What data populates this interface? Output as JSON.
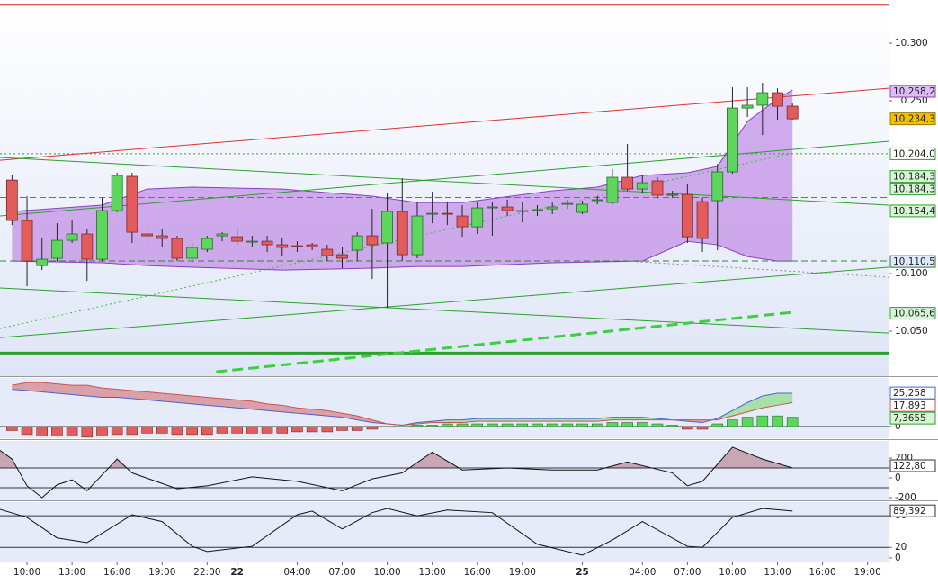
{
  "chart_data": {
    "type": "candlestick",
    "xlim": [
      -0.8,
      58.4
    ],
    "xticks": [
      {
        "value": 1,
        "label": "10:00"
      },
      {
        "value": 4,
        "label": "13:00"
      },
      {
        "value": 7,
        "label": "16:00"
      },
      {
        "value": 10,
        "label": "19:00"
      },
      {
        "value": 13,
        "label": "22:00"
      },
      {
        "value": 15,
        "label": "22"
      },
      {
        "value": 19,
        "label": "04:00"
      },
      {
        "value": 22,
        "label": "07:00"
      },
      {
        "value": 25,
        "label": "10:00"
      },
      {
        "value": 28,
        "label": "13:00"
      },
      {
        "value": 31,
        "label": "16:00"
      },
      {
        "value": 34,
        "label": "19:00"
      },
      {
        "value": 38,
        "label": "25"
      },
      {
        "value": 42,
        "label": "04:00"
      },
      {
        "value": 45,
        "label": "07:00"
      },
      {
        "value": 48,
        "label": "10:00"
      },
      {
        "value": 51,
        "label": "13:00"
      },
      {
        "value": 54,
        "label": "16:00"
      },
      {
        "value": 57,
        "label": "19:00"
      }
    ],
    "open": [
      10.1812,
      10.1461,
      10.107,
      10.1133,
      10.1289,
      10.1344,
      10.1125,
      10.1547,
      10.1844,
      10.1344,
      10.1328,
      10.1305,
      10.1133,
      10.1211,
      10.1328,
      10.132,
      10.1281,
      10.1281,
      10.125,
      10.1242,
      10.125,
      10.1211,
      10.1164,
      10.1203,
      10.1328,
      10.1266,
      10.1539,
      10.1164,
      10.1516,
      10.1523,
      10.15,
      10.1406,
      10.1578,
      10.1578,
      10.1547,
      10.1555,
      10.1562,
      10.1602,
      10.1531,
      10.1633,
      10.1617,
      10.1836,
      10.1734,
      10.1805,
      10.1687,
      10.1687,
      10.1625,
      10.1633,
      10.1883,
      10.2437,
      10.2461,
      10.257,
      10.2453
    ],
    "high": [
      10.1852,
      10.1672,
      10.1305,
      10.1437,
      10.1461,
      10.1383,
      10.1656,
      10.1875,
      10.1875,
      10.1422,
      10.1383,
      10.1328,
      10.1266,
      10.1328,
      10.1359,
      10.1383,
      10.1328,
      10.1328,
      10.1305,
      10.1281,
      10.1266,
      10.125,
      10.1227,
      10.1359,
      10.1562,
      10.1695,
      10.1828,
      10.1617,
      10.1711,
      10.1617,
      10.1594,
      10.1617,
      10.1617,
      10.1641,
      10.1617,
      10.1594,
      10.1617,
      10.1641,
      10.1633,
      10.1672,
      10.1906,
      10.2125,
      10.1852,
      10.1836,
      10.1719,
      10.1773,
      10.1656,
      10.1953,
      10.2617,
      10.2617,
      10.2656,
      10.2609,
      10.2477
    ],
    "low": [
      10.1422,
      10.0891,
      10.1031,
      10.1109,
      10.1266,
      10.0937,
      10.1109,
      10.1531,
      10.1266,
      10.125,
      10.1227,
      10.1109,
      10.1094,
      10.1187,
      10.1281,
      10.125,
      10.1227,
      10.1187,
      10.1148,
      10.1187,
      10.1203,
      10.1109,
      10.1047,
      10.1109,
      10.0953,
      10.0703,
      10.1109,
      10.1133,
      10.1437,
      10.1422,
      10.132,
      10.1344,
      10.1328,
      10.15,
      10.1445,
      10.15,
      10.1516,
      10.1562,
      10.1516,
      10.1602,
      10.1602,
      10.1719,
      10.1695,
      10.1656,
      10.1656,
      10.1266,
      10.1187,
      10.1203,
      10.1867,
      10.2359,
      10.2203,
      10.2336,
      10.2336
    ],
    "close": [
      10.1461,
      10.1109,
      10.1125,
      10.1289,
      10.1344,
      10.1125,
      10.1547,
      10.1852,
      10.1359,
      10.1328,
      10.1305,
      10.1133,
      10.1227,
      10.1305,
      10.1344,
      10.1281,
      10.1281,
      10.125,
      10.1227,
      10.1234,
      10.1234,
      10.1156,
      10.1133,
      10.1328,
      10.125,
      10.1539,
      10.1164,
      10.15,
      10.1523,
      10.1516,
      10.1406,
      10.157,
      10.1578,
      10.1547,
      10.1547,
      10.1555,
      10.1578,
      10.1609,
      10.1602,
      10.1641,
      10.1836,
      10.1734,
      10.1789,
      10.168,
      10.1687,
      10.132,
      10.1305,
      10.1883,
      10.2437,
      10.2461,
      10.257,
      10.2453,
      10.2343
    ],
    "up_color": "#5cd65c",
    "down_color": "#e25c5c",
    "ylim": [
      10.011,
      10.3375
    ],
    "yticks": [
      {
        "value": 10.3,
        "label": "10.300"
      },
      {
        "value": 10.25,
        "label": "10.250"
      },
      {
        "value": 10.1,
        "label": "10.100"
      },
      {
        "value": 10.05,
        "label": "10.050"
      }
    ],
    "band": {
      "color": "#c89ce9",
      "x": [
        0,
        6,
        9,
        12,
        18,
        24,
        27,
        30,
        36,
        39,
        42,
        45,
        47,
        49,
        51,
        52
      ],
      "upper": [
        10.1539,
        10.1594,
        10.1734,
        10.175,
        10.1734,
        10.1672,
        10.1617,
        10.1617,
        10.1719,
        10.175,
        10.1852,
        10.1875,
        10.193,
        10.232,
        10.2516,
        10.2594
      ],
      "lower": [
        10.1109,
        10.1094,
        10.107,
        10.1055,
        10.1031,
        10.1047,
        10.1062,
        10.1062,
        10.1094,
        10.1102,
        10.1109,
        10.1281,
        10.125,
        10.1148,
        10.1109,
        10.1109
      ]
    },
    "hlines": [
      {
        "value": 10.333,
        "color": "#d62020",
        "style": "solid"
      },
      {
        "value": 10.031,
        "color": "#2ca02c",
        "style": "bold"
      },
      {
        "value": 10.204,
        "color": "#2ca02c",
        "style": "dotted"
      },
      {
        "value": 10.166,
        "color": "#2ca02c",
        "style": "dashed"
      },
      {
        "value": 10.111,
        "color": "#2c8a2c",
        "style": "dashed"
      }
    ],
    "trendlines": [
      {
        "x": [
          -0.8,
          58.4
        ],
        "y": [
          10.1984,
          10.2609
        ],
        "color": "#e03030",
        "style": "solid"
      },
      {
        "x": [
          -0.8,
          58.4
        ],
        "y": [
          10.2008,
          10.1594
        ],
        "color": "#2ca02c",
        "style": "solid"
      },
      {
        "x": [
          -0.8,
          58.4
        ],
        "y": [
          10.0445,
          10.1055
        ],
        "color": "#2ca02c",
        "style": "solid"
      },
      {
        "x": [
          -0.8,
          58.4
        ],
        "y": [
          10.0875,
          10.0484
        ],
        "color": "#2ca02c",
        "style": "solid"
      },
      {
        "x": [
          -0.8,
          58.4
        ],
        "y": [
          10.15,
          10.2148
        ],
        "color": "#2ca02c",
        "style": "solid"
      },
      {
        "x": [
          -0.8,
          52
        ],
        "y": [
          10.0523,
          10.2047
        ],
        "color": "#3cc03c",
        "style": "dotted"
      },
      {
        "x": [
          13.6,
          52
        ],
        "y": [
          10.0148,
          10.0664
        ],
        "color": "#3cd03c",
        "style": "bolddash"
      },
      {
        "x": [
          41,
          58.4
        ],
        "y": [
          10.1109,
          10.0969
        ],
        "color": "#888888",
        "style": "dotted"
      }
    ],
    "price_markers": [
      {
        "value": 10.2582,
        "label": "10.258,2",
        "fill": "#dcbdf6",
        "color": "#8a3fc0"
      },
      {
        "value": 10.2343,
        "label": "10.234,3",
        "fill": "#f2c200",
        "color": "#9a7a00"
      },
      {
        "value": 10.204,
        "label": "10.204,0",
        "fill": "#ffffff",
        "color": "#2ca02c"
      },
      {
        "value": 10.1843,
        "label": "10.184,3",
        "fill": "#d8f5d8",
        "color": "#2ca02c"
      },
      {
        "value": 10.1843,
        "label": "10.184,3",
        "fill": "#d8f5d8",
        "color": "#2ca02c"
      },
      {
        "value": 10.1544,
        "label": "10.154,4",
        "fill": "#d8f5d8",
        "color": "#2ca02c"
      },
      {
        "value": 10.1105,
        "label": "10.110,5",
        "fill": "#e0eaff",
        "color": "#2c7a2c"
      },
      {
        "value": 10.0656,
        "label": "10.065,6",
        "fill": "#d8f5d8",
        "color": "#2ca02c"
      }
    ],
    "panels": [
      {
        "type": "macd",
        "ylim": [
          -8.8,
          36.5
        ],
        "yticks": [
          0
        ],
        "histogram": [
          -3,
          -6,
          -7,
          -7,
          -7,
          -8,
          -7,
          -6,
          -6,
          -5,
          -5,
          -6,
          -6,
          -6,
          -5,
          -5,
          -5,
          -5,
          -5,
          -4,
          -4,
          -4,
          -3,
          -3,
          -2,
          0,
          0,
          1,
          1,
          2,
          2,
          2,
          2,
          2,
          2,
          2,
          2,
          2,
          2,
          2,
          3,
          3,
          3,
          2,
          1,
          -2,
          -2,
          2,
          5,
          7,
          8,
          8,
          7
        ],
        "macd": [
          28,
          27,
          26,
          25,
          24,
          23,
          22,
          22,
          21,
          20,
          19,
          18,
          17,
          16,
          15,
          14,
          13,
          12,
          11,
          10,
          9,
          8,
          7,
          5,
          3,
          2,
          1,
          3,
          4,
          5,
          5,
          6,
          6,
          6,
          6,
          6,
          6,
          6,
          6,
          6,
          7,
          7,
          7,
          6,
          5,
          4,
          3,
          6,
          12,
          18,
          23,
          25,
          25
        ],
        "signal": [
          31,
          33,
          33,
          32,
          31,
          31,
          29,
          28,
          27,
          26,
          25,
          24,
          23,
          22,
          21,
          20,
          19,
          17,
          16,
          14,
          13,
          12,
          10,
          8,
          5,
          2,
          1,
          2,
          3,
          3,
          3,
          4,
          4,
          4,
          4,
          4,
          4,
          4,
          4,
          4,
          5,
          5,
          5,
          5,
          5,
          5,
          5,
          5,
          8,
          11,
          14,
          16,
          18
        ],
        "colors": {
          "macd": "#4a62d0",
          "signal": "#d05050",
          "up": "#5cd65c",
          "down": "#e25c5c"
        },
        "markers": [
          {
            "value": 25.258,
            "label": "25,258",
            "fill": "#ffffff",
            "color": "#4a62d0"
          },
          {
            "value": 17.893,
            "label": "17,893",
            "fill": "#ffffff",
            "color": "#d05050"
          },
          {
            "value": 7.3655,
            "label": "7,3655",
            "fill": "#d8f5d8",
            "color": "#2ca02c"
          }
        ]
      },
      {
        "type": "line",
        "ylim": [
          -227,
          373
        ],
        "yticks": [
          200,
          0,
          -200
        ],
        "levels": [
          100,
          -100
        ],
        "fill_above": 100,
        "x": [
          -1,
          0,
          1,
          2,
          3,
          4,
          5,
          7,
          8,
          11,
          13,
          16,
          19,
          22,
          24,
          26,
          28,
          30,
          33,
          36,
          39,
          41,
          44,
          45,
          46,
          48,
          50,
          52
        ],
        "values": [
          300,
          190,
          -80,
          -200,
          -70,
          -20,
          -130,
          190,
          50,
          -110,
          -80,
          10,
          -35,
          -130,
          -10,
          50,
          260,
          80,
          100,
          80,
          80,
          160,
          50,
          -80,
          -35,
          310,
          190,
          100
        ],
        "color": "#111111",
        "markers": [
          {
            "value": 122.8,
            "label": "122,80",
            "fill": "#ffffff",
            "color": "#333333"
          }
        ]
      },
      {
        "type": "line",
        "ylim": [
          -7,
          106
        ],
        "yticks": [
          80,
          20,
          0
        ],
        "levels": [
          80,
          20
        ],
        "x": [
          -1,
          1,
          3,
          5,
          8,
          10,
          12,
          13,
          16,
          19,
          20,
          22,
          24,
          25,
          27,
          29,
          32,
          35,
          38,
          40,
          42,
          45,
          46,
          48,
          50,
          52
        ],
        "values": [
          94,
          77,
          38,
          29,
          82,
          69,
          22,
          12,
          22,
          82,
          89,
          55,
          86,
          94,
          80,
          91,
          86,
          26,
          5,
          34,
          69,
          22,
          20,
          77,
          94,
          89
        ],
        "color": "#111111",
        "markers": [
          {
            "value": 89.392,
            "label": "89,392",
            "fill": "#ffffff",
            "color": "#333333"
          }
        ]
      }
    ]
  }
}
